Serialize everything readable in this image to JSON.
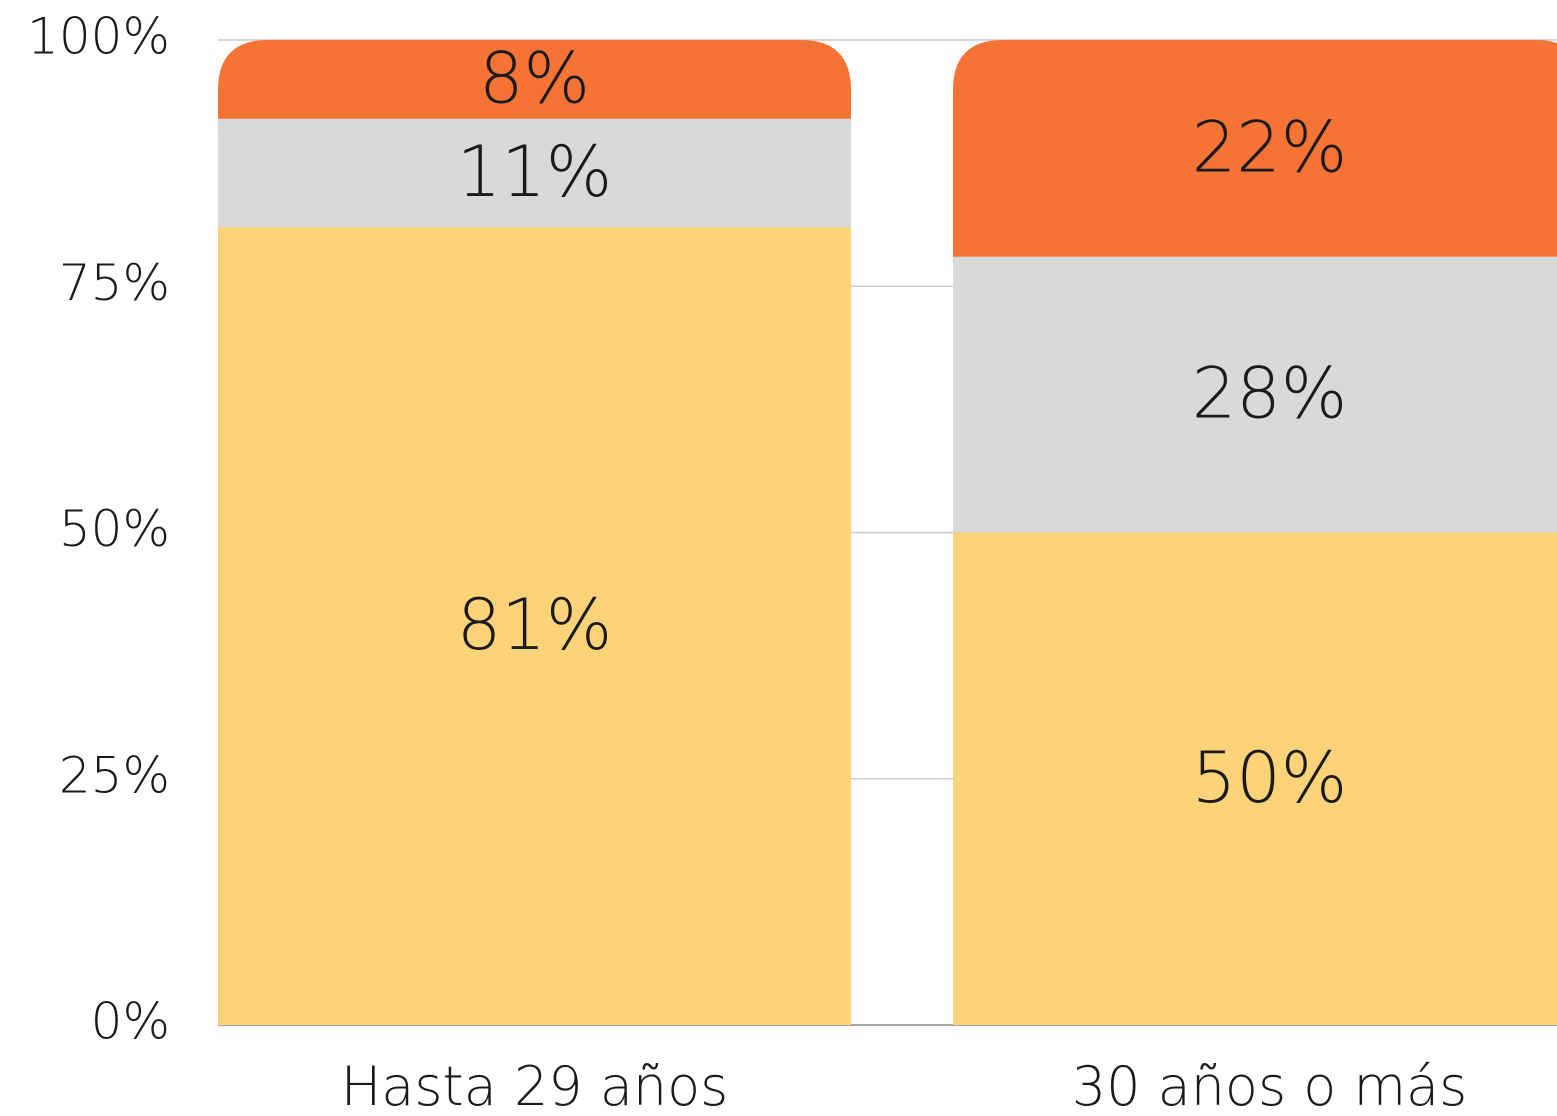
{
  "chart_data": {
    "type": "stacked_bar",
    "categories": [
      "Hasta 29 años",
      "30 años o más"
    ],
    "series": [
      {
        "color": "#fcd378",
        "values": [
          81,
          50
        ],
        "value_labels": [
          "81%",
          "50%"
        ]
      },
      {
        "color": "#d9d9d9",
        "values": [
          11,
          28
        ],
        "value_labels": [
          "11%",
          "28%"
        ]
      },
      {
        "color": "#f57435",
        "values": [
          8,
          22
        ],
        "value_labels": [
          "8%",
          "22%"
        ]
      }
    ],
    "ylim": [
      0,
      100
    ],
    "yticks": [
      {
        "value": 0,
        "label": "0%"
      },
      {
        "value": 25,
        "label": "25%"
      },
      {
        "value": 50,
        "label": "50%"
      },
      {
        "value": 75,
        "label": "75%"
      },
      {
        "value": 100,
        "label": "100%"
      }
    ],
    "grid": true
  }
}
